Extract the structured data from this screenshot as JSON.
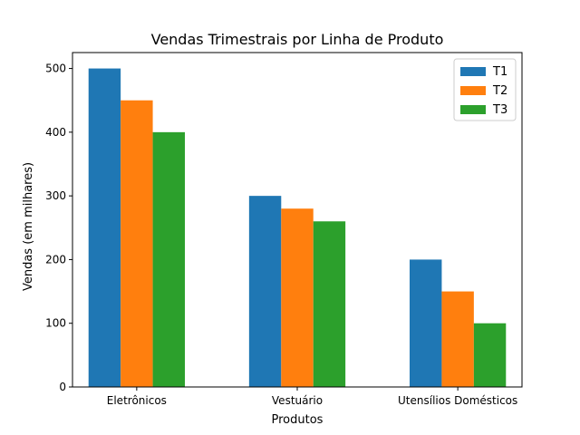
{
  "chart_data": {
    "type": "bar",
    "title": "Vendas Trimestrais por Linha de Produto",
    "xlabel": "Produtos",
    "ylabel": "Vendas (em milhares)",
    "categories": [
      "Eletrônicos",
      "Vestuário",
      "Utensílios Domésticos"
    ],
    "series": [
      {
        "name": "T1",
        "values": [
          500,
          300,
          200
        ],
        "color": "#1f77b4"
      },
      {
        "name": "T2",
        "values": [
          450,
          280,
          150
        ],
        "color": "#ff7f0e"
      },
      {
        "name": "T3",
        "values": [
          400,
          260,
          100
        ],
        "color": "#2ca02c"
      }
    ],
    "ylim": [
      0,
      525
    ],
    "yticks": [
      0,
      100,
      200,
      300,
      400,
      500
    ],
    "grid": false,
    "legend_position": "top-right"
  }
}
